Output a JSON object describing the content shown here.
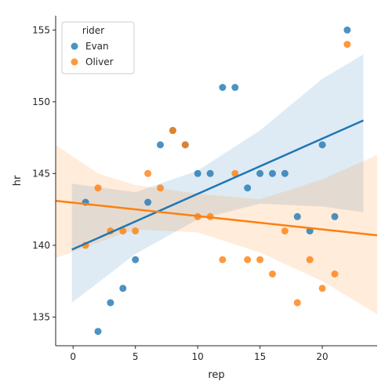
{
  "chart_data": {
    "type": "scatter",
    "title": "",
    "xlabel": "rep",
    "ylabel": "hr",
    "xlim": [
      -1.4,
      24.4
    ],
    "ylim": [
      133,
      156
    ],
    "x_ticks": [
      0,
      5,
      10,
      15,
      20
    ],
    "y_ticks": [
      135,
      140,
      145,
      150,
      155
    ],
    "grid": false,
    "legend": {
      "title": "rider",
      "placement": "top-left"
    },
    "series": [
      {
        "name": "Evan",
        "color": "#1f77b4",
        "x": [
          1,
          2,
          3,
          4,
          5,
          6,
          7,
          8,
          9,
          10,
          11,
          12,
          13,
          14,
          15,
          16,
          17,
          18,
          19,
          20,
          21,
          22
        ],
        "y": [
          143,
          134,
          136,
          137,
          139,
          143,
          147,
          148,
          147,
          145,
          145,
          151,
          151,
          144,
          145,
          145,
          145,
          142,
          141,
          147,
          142,
          155
        ],
        "regression": {
          "x_start": -0.1,
          "y_start": 139.7,
          "x_end": 23.3,
          "y_end": 148.7
        },
        "ci_band": {
          "x": [
            -0.1,
            5,
            10,
            15,
            20,
            23.3
          ],
          "lower": [
            136.0,
            139.4,
            141.8,
            142.9,
            142.7,
            142.3
          ],
          "upper": [
            144.3,
            143.7,
            145.2,
            148.0,
            151.6,
            153.3
          ]
        }
      },
      {
        "name": "Oliver",
        "color": "#ff7f0e",
        "x": [
          1,
          2,
          3,
          4,
          5,
          6,
          7,
          8,
          9,
          10,
          11,
          12,
          13,
          14,
          15,
          16,
          17,
          18,
          19,
          20,
          21,
          22
        ],
        "y": [
          140,
          144,
          141,
          141,
          141,
          145,
          144,
          148,
          147,
          142,
          142,
          139,
          145,
          139,
          139,
          138,
          141,
          136,
          139,
          137,
          138,
          154
        ],
        "regression": {
          "x_start": -1.4,
          "y_start": 143.1,
          "x_end": 24.4,
          "y_end": 140.7
        },
        "ci_band": {
          "x": [
            -1.4,
            2,
            5,
            10,
            15,
            20,
            24.4
          ],
          "lower": [
            139.1,
            140.2,
            141.1,
            140.9,
            139.5,
            137.5,
            135.2
          ],
          "upper": [
            147.0,
            145.0,
            144.2,
            143.6,
            143.2,
            144.6,
            146.3
          ]
        }
      }
    ]
  }
}
